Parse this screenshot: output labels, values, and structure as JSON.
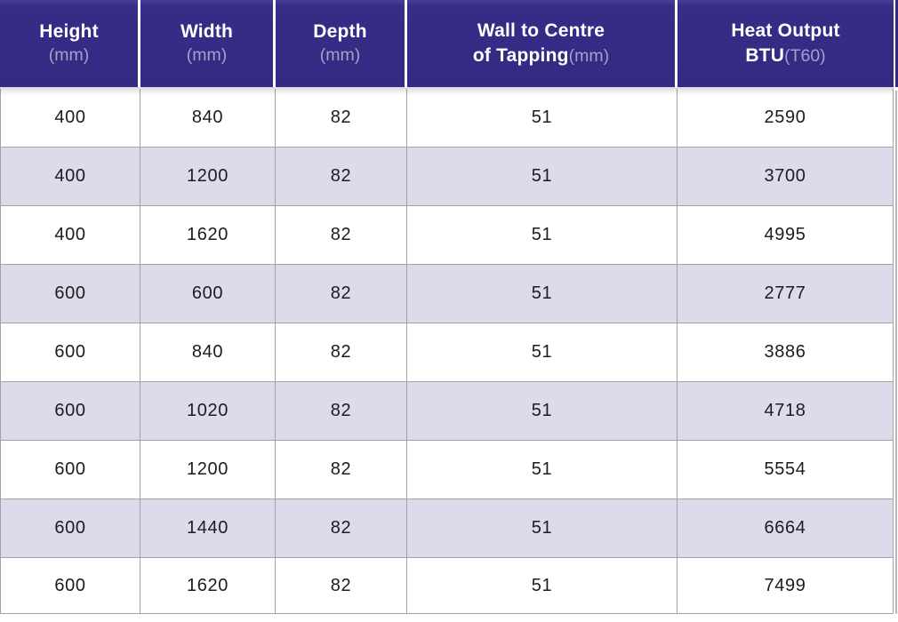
{
  "table": {
    "columns": [
      {
        "label": "Height",
        "label2": "",
        "unit": "(mm)"
      },
      {
        "label": "Width",
        "label2": "",
        "unit": "(mm)"
      },
      {
        "label": "Depth",
        "label2": "",
        "unit": "(mm)"
      },
      {
        "label": "Wall to Centre",
        "label2": "of Tapping",
        "unit": "(mm)"
      },
      {
        "label": "Heat Output",
        "label2": "BTU",
        "unit": "(T60)"
      }
    ],
    "rows": [
      [
        "400",
        "840",
        "82",
        "51",
        "2590"
      ],
      [
        "400",
        "1200",
        "82",
        "51",
        "3700"
      ],
      [
        "400",
        "1620",
        "82",
        "51",
        "4995"
      ],
      [
        "600",
        "600",
        "82",
        "51",
        "2777"
      ],
      [
        "600",
        "840",
        "82",
        "51",
        "3886"
      ],
      [
        "600",
        "1020",
        "82",
        "51",
        "4718"
      ],
      [
        "600",
        "1200",
        "82",
        "51",
        "5554"
      ],
      [
        "600",
        "1440",
        "82",
        "51",
        "6664"
      ],
      [
        "600",
        "1620",
        "82",
        "51",
        "7499"
      ]
    ]
  },
  "colors": {
    "header_background": "#342a83",
    "header_text": "#ffffff",
    "header_unit_text": "#a5a1c8",
    "row_alternate_background": "#dcdaeb",
    "row_background": "#ffffff",
    "grid_border": "#a3a3a3",
    "body_text": "#1c1c1e"
  }
}
